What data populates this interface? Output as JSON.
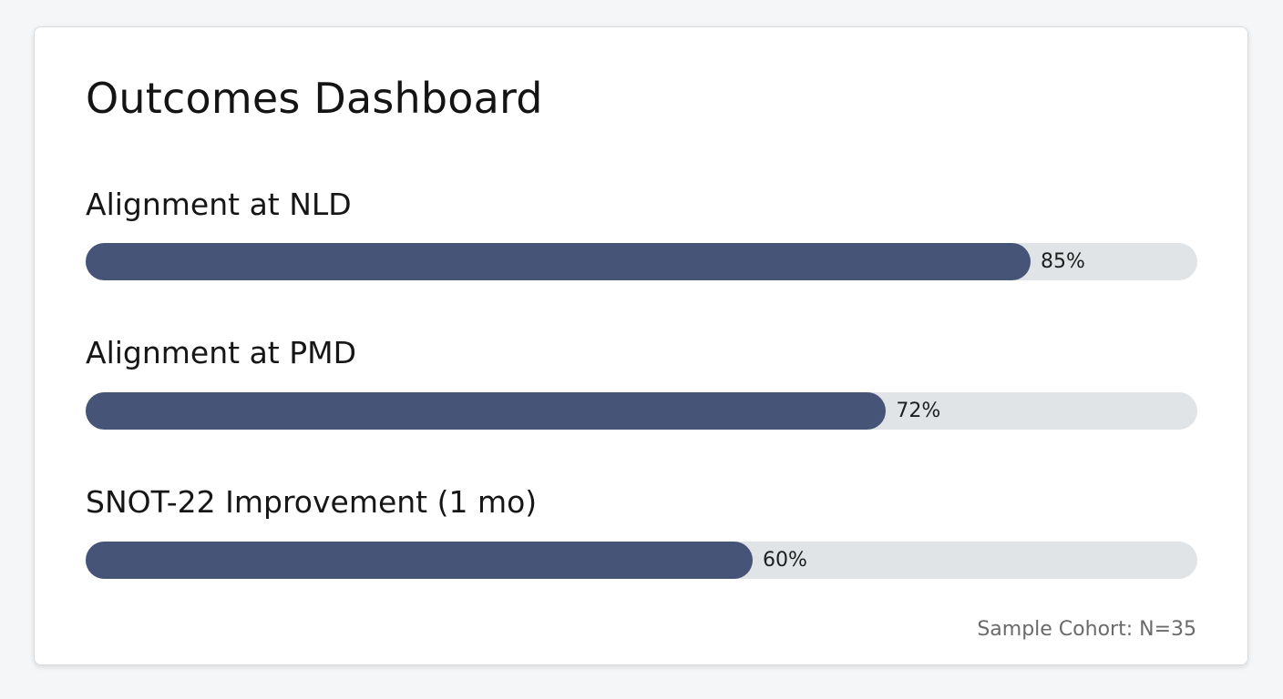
{
  "dashboard": {
    "title": "Outcomes Dashboard",
    "footnote": "Sample Cohort: N=35"
  },
  "colors": {
    "bar_fill": "#465478",
    "bar_track": "#e1e4e6",
    "card_background": "#ffffff",
    "page_background": "#f4f6f8"
  },
  "metrics": [
    {
      "label": "Alignment at NLD",
      "value_text": "85%",
      "value": 0.85
    },
    {
      "label": "Alignment at PMD",
      "value_text": "72%",
      "value": 0.72
    },
    {
      "label": "SNOT-22 Improvement (1 mo)",
      "value_text": "60%",
      "value": 0.6
    }
  ]
}
